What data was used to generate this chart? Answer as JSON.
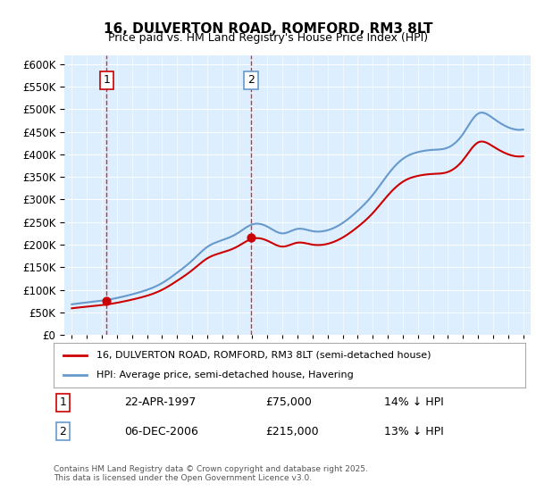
{
  "title": "16, DULVERTON ROAD, ROMFORD, RM3 8LT",
  "subtitle": "Price paid vs. HM Land Registry's House Price Index (HPI)",
  "legend_property": "16, DULVERTON ROAD, ROMFORD, RM3 8LT (semi-detached house)",
  "legend_hpi": "HPI: Average price, semi-detached house, Havering",
  "sale1_label": "1",
  "sale1_date": "22-APR-1997",
  "sale1_price": "£75,000",
  "sale1_hpi": "14% ↓ HPI",
  "sale2_label": "2",
  "sale2_date": "06-DEC-2006",
  "sale2_price": "£215,000",
  "sale2_hpi": "13% ↓ HPI",
  "footnote": "Contains HM Land Registry data © Crown copyright and database right 2025.\nThis data is licensed under the Open Government Licence v3.0.",
  "property_color": "#cc0000",
  "hpi_color": "#6699cc",
  "sale_dot_color": "#cc0000",
  "vline_color": "#cc0000",
  "background_color": "#ffffff",
  "plot_bg_color": "#ddeeff",
  "ylim": [
    0,
    620000
  ],
  "yticks": [
    0,
    50000,
    100000,
    150000,
    200000,
    250000,
    300000,
    350000,
    400000,
    450000,
    500000,
    550000,
    600000
  ],
  "hpi_years": [
    1995,
    1996,
    1997,
    1998,
    1999,
    2000,
    2001,
    2002,
    2003,
    2004,
    2005,
    2006,
    2007,
    2008,
    2009,
    2010,
    2011,
    2012,
    2013,
    2014,
    2015,
    2016,
    2017,
    2018,
    2019,
    2020,
    2021,
    2022,
    2023,
    2024,
    2025
  ],
  "hpi_values": [
    68000,
    72000,
    76000,
    82000,
    90000,
    100000,
    115000,
    138000,
    165000,
    195000,
    210000,
    225000,
    245000,
    240000,
    225000,
    235000,
    230000,
    232000,
    248000,
    275000,
    310000,
    355000,
    390000,
    405000,
    410000,
    415000,
    445000,
    490000,
    480000,
    460000,
    455000
  ],
  "sale_years": [
    1997.31,
    2006.92
  ],
  "sale_prices": [
    75000,
    215000
  ]
}
